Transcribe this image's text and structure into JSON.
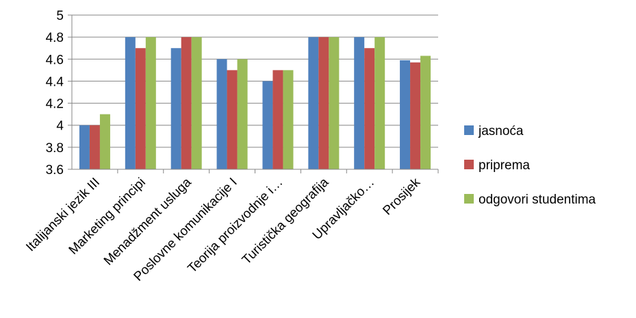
{
  "chart_data": {
    "type": "bar",
    "categories": [
      "Italijanski jezik III",
      "Marketing principi",
      "Menadžment usluga",
      "Poslovne komunikacije I",
      "Teorija proizvodnje i…",
      "Turistička geografija",
      "Upravljačko…",
      "Prosijek"
    ],
    "series": [
      {
        "name": "jasnoća",
        "color": "#4f81bd",
        "values": [
          4.0,
          4.8,
          4.7,
          4.6,
          4.4,
          4.8,
          4.8,
          4.59
        ]
      },
      {
        "name": "priprema",
        "color": "#c0504d",
        "values": [
          4.0,
          4.7,
          4.8,
          4.5,
          4.5,
          4.8,
          4.7,
          4.57
        ]
      },
      {
        "name": "odgovori studentima",
        "color": "#9bbb59",
        "values": [
          4.1,
          4.8,
          4.8,
          4.6,
          4.5,
          4.8,
          4.8,
          4.63
        ]
      }
    ],
    "yticks": [
      "3.6",
      "3.8",
      "4",
      "4.2",
      "4.4",
      "4.6",
      "4.8",
      "5"
    ],
    "ylim": [
      3.6,
      5.0
    ],
    "grid": true,
    "legend": "right"
  }
}
